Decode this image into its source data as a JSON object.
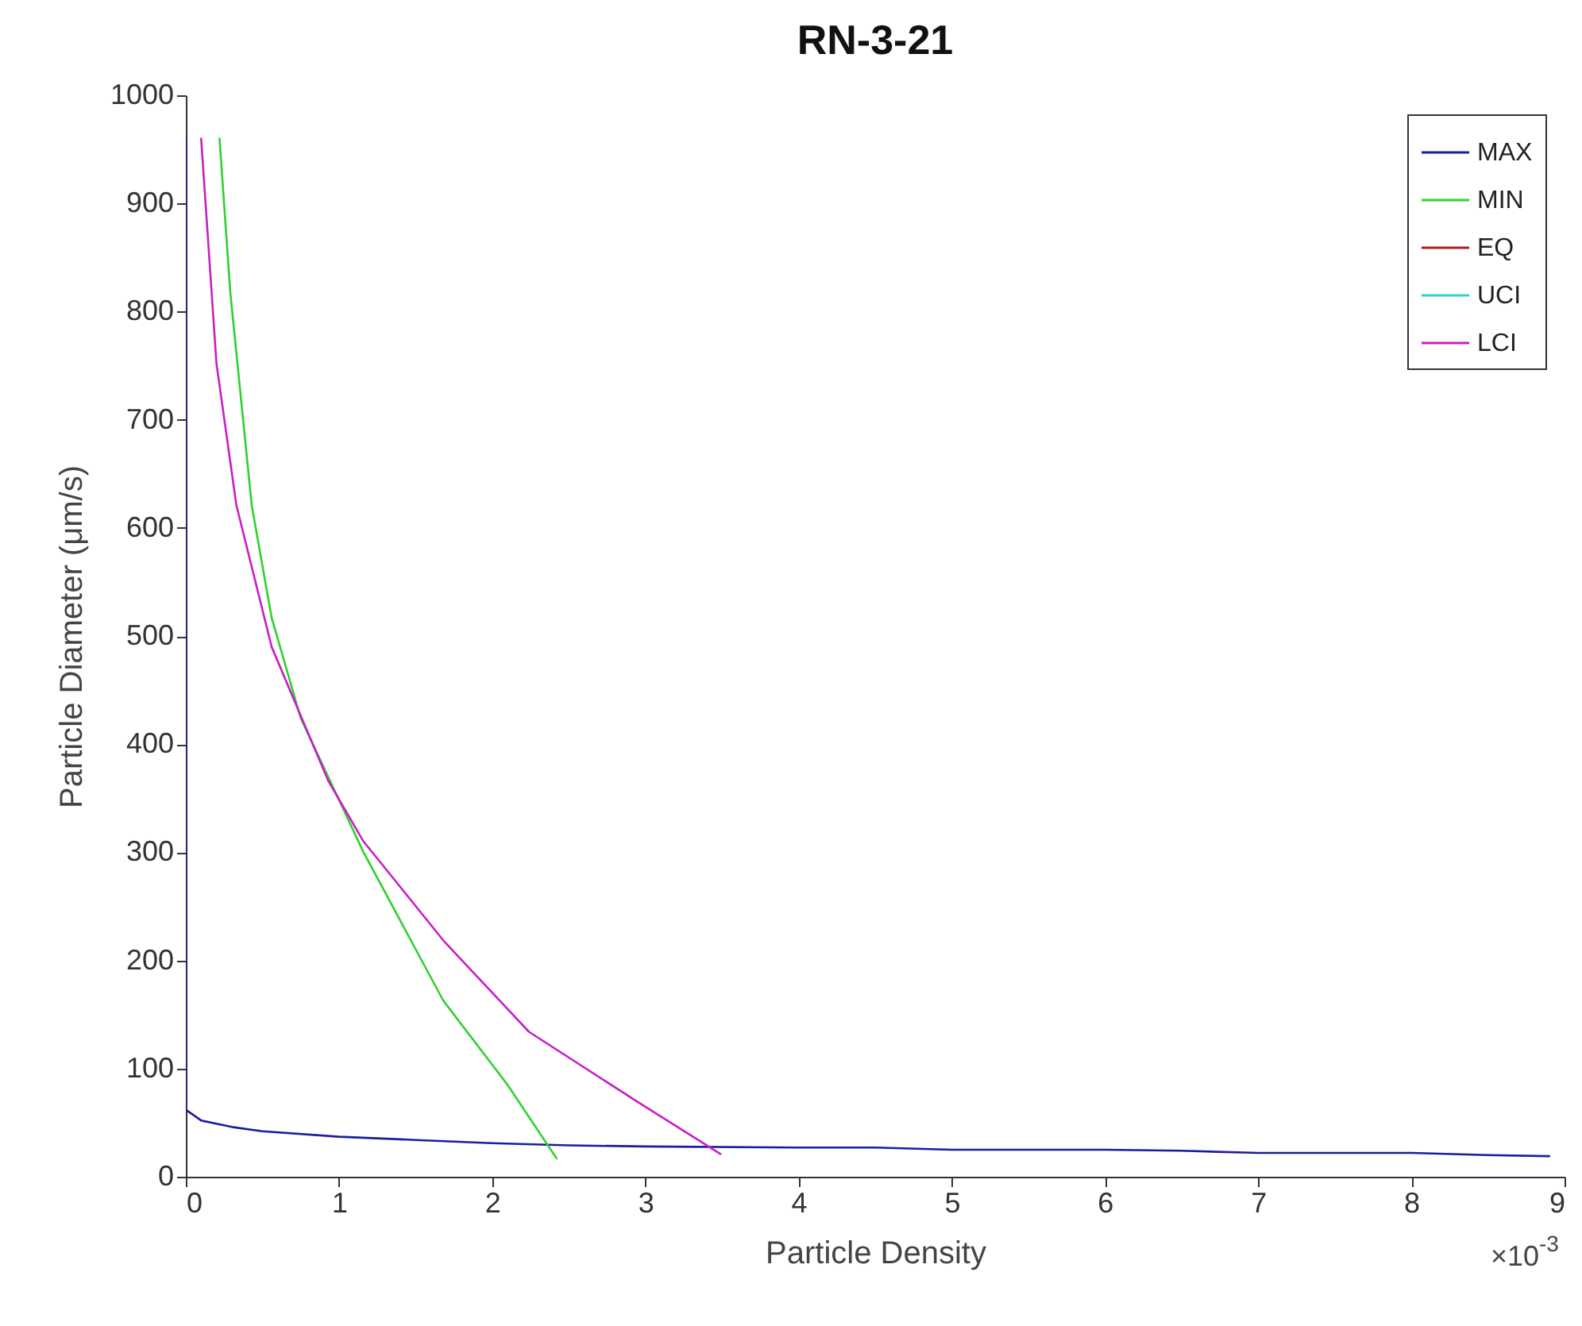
{
  "chart_data": {
    "type": "line",
    "title": "RN-3-21",
    "xlabel": "Particle Density",
    "ylabel": "Particle Diameter  (μm/s)",
    "annotations": [
      "×10$^{-3}$"
    ],
    "xlim": [
      0,
      9
    ],
    "xticks": [
      0,
      1,
      2,
      3,
      4,
      5,
      6,
      7,
      8,
      9
    ],
    "ylim": [
      0,
      1000
    ],
    "yticks": [
      0,
      100,
      200,
      300,
      400,
      500,
      600,
      700,
      800,
      900,
      1000
    ],
    "grid": false,
    "legend": "top right",
    "line_style": "solid",
    "marker": "none",
    "series": [
      {
        "name": "MAX",
        "color": "#1c1ca0",
        "x": [
          0,
          0,
          0.1,
          0.3,
          0.5,
          1,
          1.5,
          2,
          2.5,
          3,
          4,
          4.5,
          5,
          6,
          6.5,
          7,
          8,
          8.5,
          8.9
        ],
        "values": [
          960,
          62,
          52,
          46,
          42,
          37,
          34,
          31,
          29,
          28,
          27,
          27,
          25,
          25,
          24,
          22,
          22,
          20,
          19
        ]
      },
      {
        "name": "MIN",
        "color": "#2ed12e",
        "x": [
          0.22,
          0.29,
          0.43,
          0.56,
          0.75,
          1.16,
          1.68,
          2.1,
          2.42
        ],
        "values": [
          960,
          818,
          621,
          517,
          424,
          300,
          163,
          85,
          17
        ]
      },
      {
        "name": "EQ",
        "color": "#b01c1c"
      },
      {
        "name": "UCI",
        "color": "#2ed1d1"
      },
      {
        "name": "LCI",
        "color": "#c81ec8",
        "x": [
          0.1,
          0.2,
          0.33,
          0.56,
          0.93,
          1.16,
          1.69,
          2.24,
          2.94,
          3.49
        ],
        "values": [
          960,
          752,
          621,
          490,
          366,
          310,
          217,
          134,
          70,
          21
        ]
      }
    ]
  }
}
